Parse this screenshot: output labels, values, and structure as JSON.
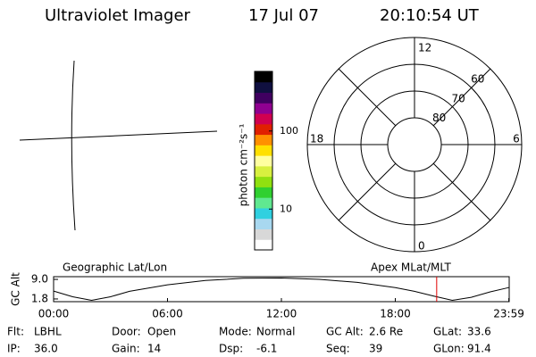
{
  "header": {
    "instrument": "Ultraviolet Imager",
    "date": "17 Jul 07",
    "time": "20:10:54 UT"
  },
  "colorbar": {
    "label": "photon cm⁻²s⁻¹",
    "log": true,
    "range": [
      3,
      580
    ],
    "ticks": [
      10,
      100
    ],
    "colors": [
      "#ffffff",
      "#d8d8d8",
      "#a8d8f0",
      "#30d0e0",
      "#60e890",
      "#30d030",
      "#90e010",
      "#d8f040",
      "#ffffa0",
      "#ffe000",
      "#ff9000",
      "#e02000",
      "#d00050",
      "#900090",
      "#400060",
      "#101040",
      "#000000"
    ]
  },
  "polar": {
    "lat_min": 50,
    "rings": [
      60,
      70,
      80
    ],
    "mlt": {
      "top": "12",
      "right": "6",
      "bottom": "0",
      "left": "18"
    }
  },
  "geo_title": "Geographic Lat/Lon",
  "apex_title": "Apex MLat/MLT",
  "orbit": {
    "ylabel": "GC Alt",
    "xlim": [
      0,
      24
    ],
    "ylim": [
      0.8,
      10
    ],
    "yticks": [
      1.8,
      {
        "value": 9,
        "label": "9.0"
      }
    ],
    "xticks": [
      {
        "value": 0,
        "label": "00:00"
      },
      {
        "value": 6,
        "label": "06:00"
      },
      {
        "value": 12,
        "label": "12:00"
      },
      {
        "value": 18,
        "label": "18:00"
      },
      {
        "value": 23.98,
        "label": "23:59"
      }
    ],
    "x": [
      0,
      1,
      2,
      3,
      4,
      6,
      8,
      10,
      12,
      14,
      16,
      18,
      19,
      20,
      21,
      22,
      23,
      23.98
    ],
    "values": [
      4.7,
      2.6,
      1.3,
      2.6,
      4.6,
      7.0,
      8.6,
      9.4,
      9.5,
      9.0,
      7.9,
      6.0,
      4.6,
      2.9,
      1.3,
      2.4,
      4.4,
      6.0
    ],
    "current": 20.18
  },
  "status": [
    [
      {
        "label": "Flt:",
        "value": "LBHL"
      },
      {
        "label": "Door:",
        "value": "Open"
      },
      {
        "label": "Mode:",
        "value": "Normal"
      },
      {
        "label": "GC Alt:",
        "value": "2.6 Re"
      },
      {
        "label": "GLat:",
        "value": "33.6"
      }
    ],
    [
      {
        "label": "IP:",
        "value": "36.0"
      },
      {
        "label": "Gain:",
        "value": "14"
      },
      {
        "label": "Dsp:",
        "value": "-6.1"
      },
      {
        "label": "Seq:",
        "value": "39"
      },
      {
        "label": "GLon:",
        "value": "91.4"
      }
    ]
  ]
}
